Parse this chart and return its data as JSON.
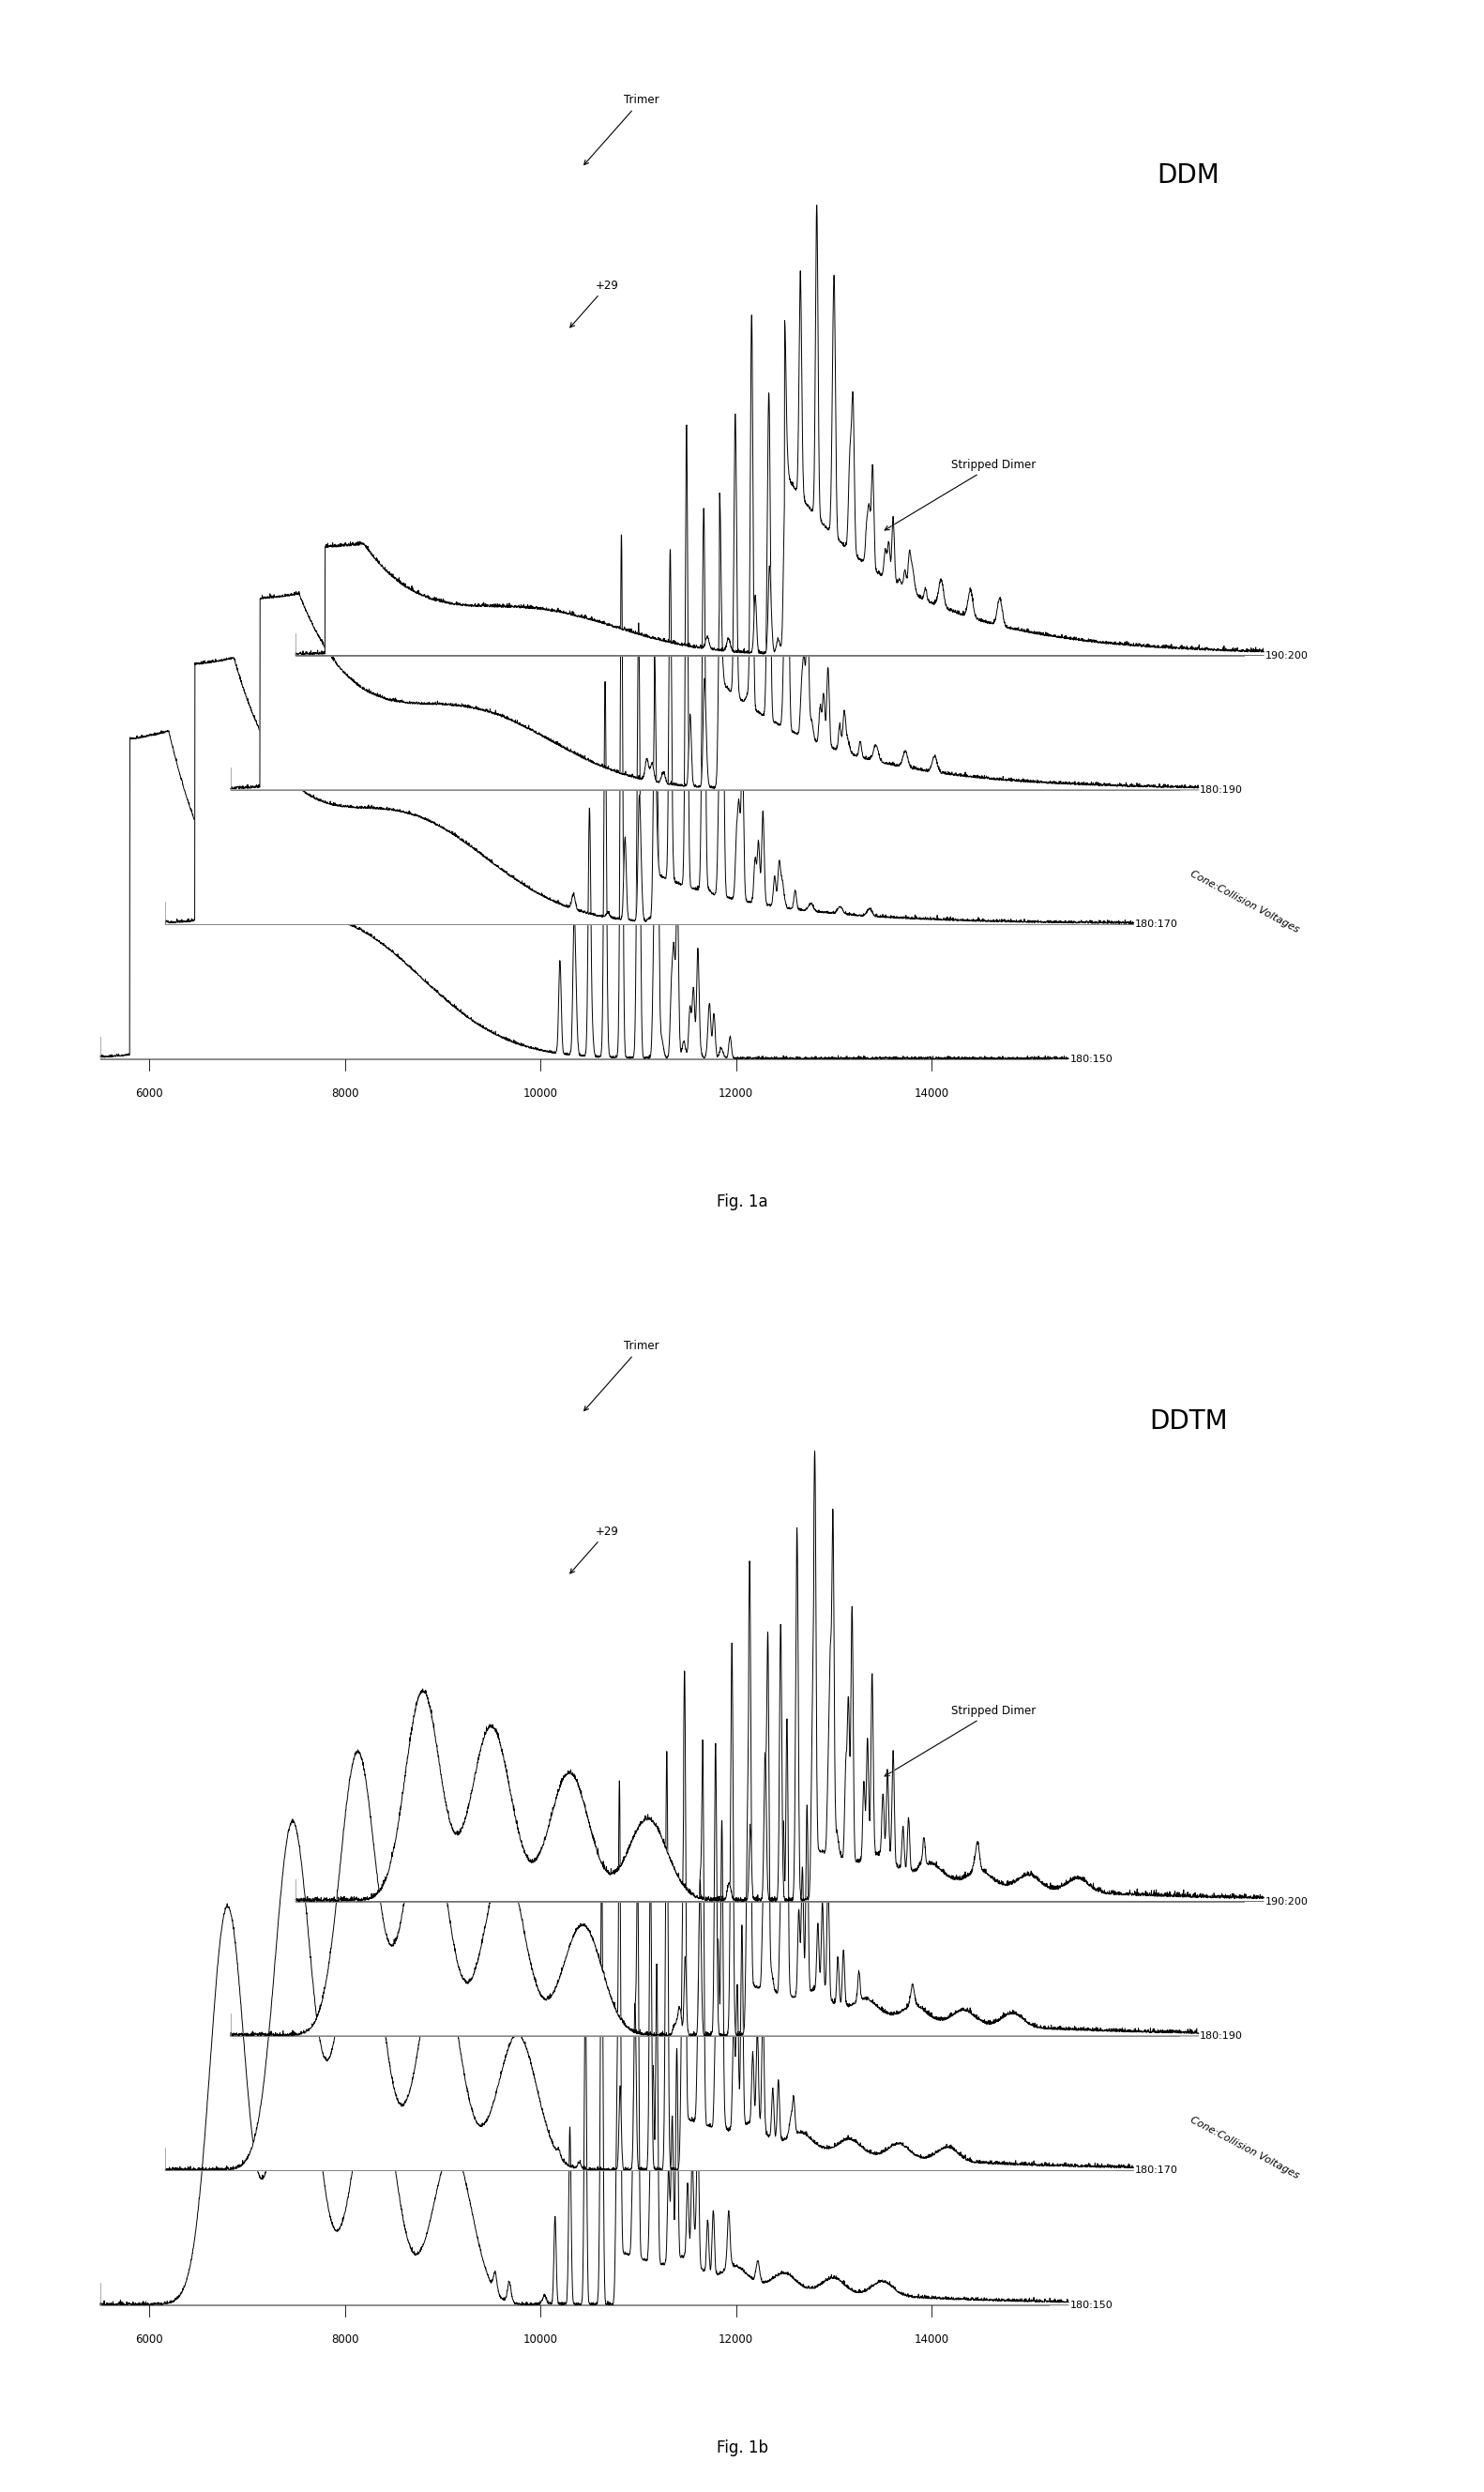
{
  "title_a": "DDM",
  "title_b": "DDTM",
  "fig_label_a": "Fig. 1a",
  "fig_label_b": "Fig. 1b",
  "ylabel_depth": "Cone:Collision Voltages",
  "x_ticks": [
    6000,
    8000,
    10000,
    12000,
    14000
  ],
  "voltage_labels": [
    "180:150",
    "180:170",
    "180:190",
    "190:200"
  ],
  "background_color": "#ffffff",
  "line_color": "#111111"
}
